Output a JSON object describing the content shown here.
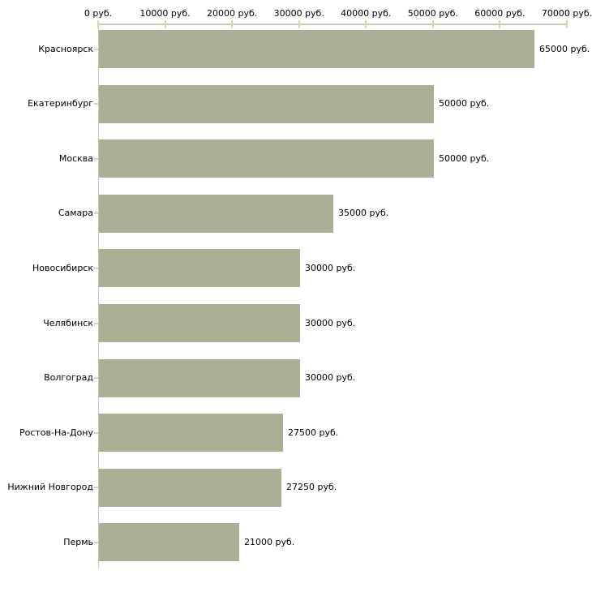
{
  "chart_data": {
    "type": "bar",
    "orientation": "horizontal",
    "title": "",
    "xlabel": "",
    "ylabel": "",
    "xlim": [
      0,
      70000
    ],
    "grid": false,
    "legend": "none",
    "x_ticks": [
      {
        "value": 0,
        "label": "0 руб."
      },
      {
        "value": 10000,
        "label": "10000 руб."
      },
      {
        "value": 20000,
        "label": "20000 руб."
      },
      {
        "value": 30000,
        "label": "30000 руб."
      },
      {
        "value": 40000,
        "label": "40000 руб."
      },
      {
        "value": 50000,
        "label": "50000 руб."
      },
      {
        "value": 60000,
        "label": "60000 руб."
      },
      {
        "value": 70000,
        "label": "70000 руб."
      }
    ],
    "categories": [
      "Красноярск",
      "Екатеринбург",
      "Москва",
      "Самара",
      "Новосибирск",
      "Челябинск",
      "Волгоград",
      "Ростов-На-Дону",
      "Нижний Новгород",
      "Пермь"
    ],
    "values": [
      65000,
      50000,
      50000,
      35000,
      30000,
      30000,
      30000,
      27500,
      27250,
      21000
    ],
    "value_labels": [
      "65000 руб.",
      "50000 руб.",
      "50000 руб.",
      "35000 руб.",
      "30000 руб.",
      "30000 руб.",
      "30000 руб.",
      "27500 руб.",
      "27250 руб.",
      "21000 руб."
    ],
    "colors": {
      "bar_fill": "#a9b096",
      "axis_line": "#c9c9bb",
      "tick_mark": "#d8d8aa",
      "text": "#000000",
      "background": "#ffffff"
    }
  }
}
